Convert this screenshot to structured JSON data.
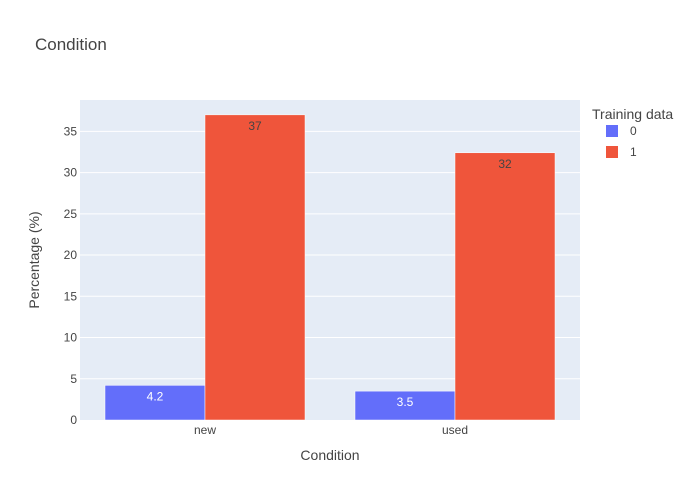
{
  "chart_data": {
    "type": "bar",
    "title": "Condition",
    "xlabel": "Condition",
    "ylabel": "Percentage (%)",
    "categories": [
      "new",
      "used"
    ],
    "series": [
      {
        "name": "0",
        "values": [
          4.2,
          3.5
        ],
        "labels": [
          "4.2",
          "3.5"
        ],
        "color": "#636efa",
        "label_color": "#ffffff"
      },
      {
        "name": "1",
        "values": [
          37,
          32.4
        ],
        "labels": [
          "37",
          "32"
        ],
        "color": "#ef553b",
        "label_color": "#444444"
      }
    ],
    "ylim": [
      0,
      38.8
    ],
    "yticks": [
      0,
      5,
      10,
      15,
      20,
      25,
      30,
      35
    ],
    "grid": true,
    "legend": {
      "title": "Training data",
      "placement": "right"
    },
    "plot_bgcolor": "#e5ecf6"
  }
}
